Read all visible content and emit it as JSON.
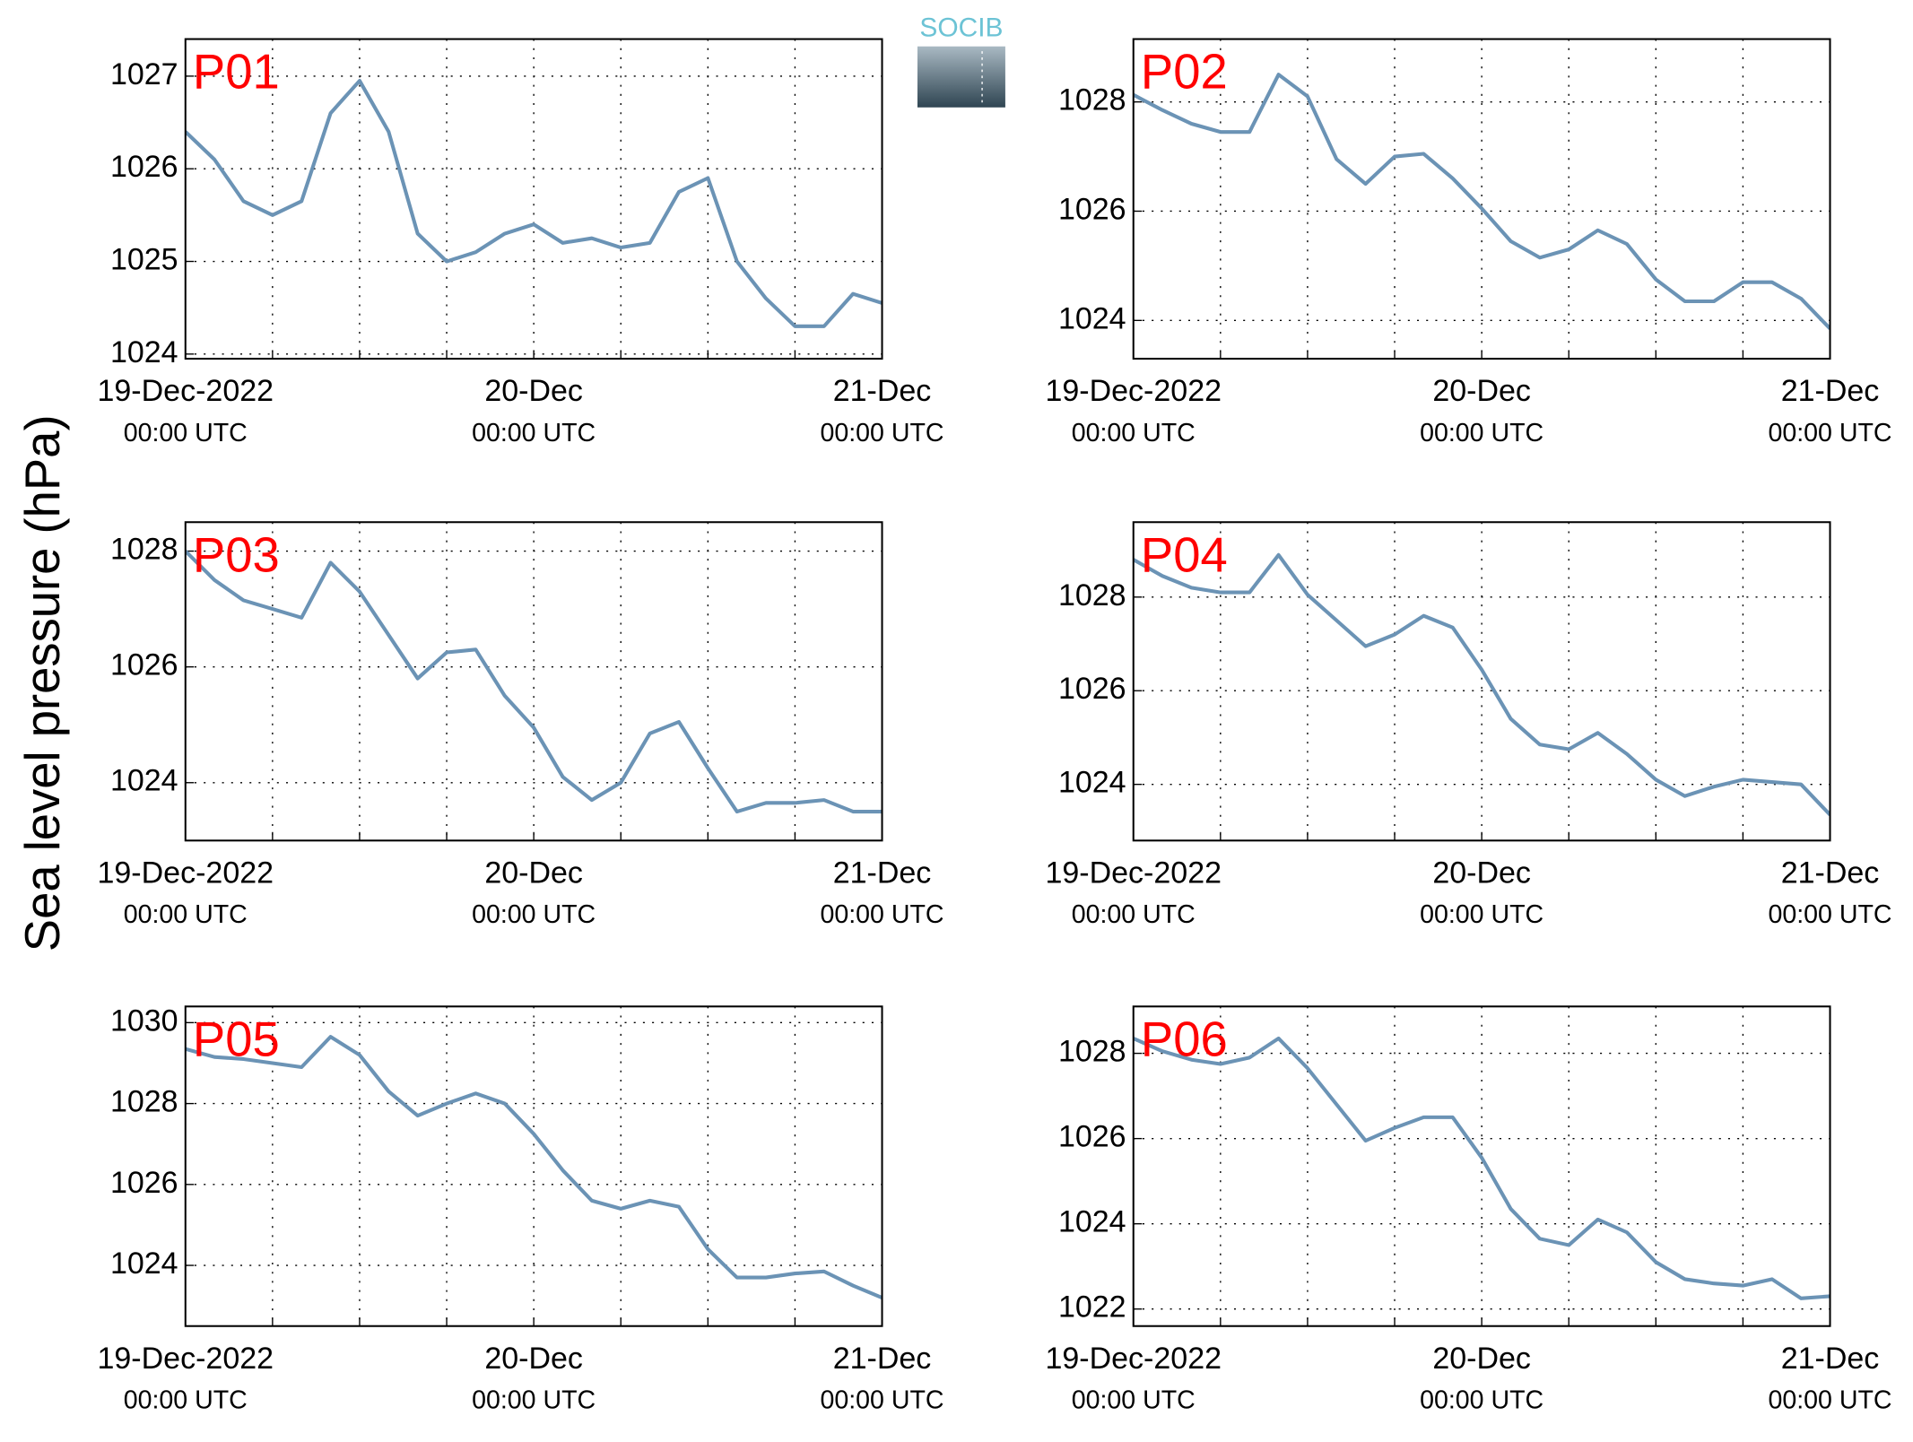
{
  "ylabel": "Sea level pressure (hPa)",
  "logo": "SOCIB",
  "chart_data": [
    {
      "type": "line",
      "title": "P01",
      "x": [
        "19-Dec-2022 00:00",
        "19-Dec-2022 02:00",
        "19-Dec-2022 04:00",
        "19-Dec-2022 06:00",
        "19-Dec-2022 08:00",
        "19-Dec-2022 10:00",
        "19-Dec-2022 12:00",
        "19-Dec-2022 14:00",
        "19-Dec-2022 16:00",
        "19-Dec-2022 18:00",
        "19-Dec-2022 20:00",
        "19-Dec-2022 22:00",
        "20-Dec-2022 00:00",
        "20-Dec-2022 02:00",
        "20-Dec-2022 04:00",
        "20-Dec-2022 06:00",
        "20-Dec-2022 08:00",
        "20-Dec-2022 10:00",
        "20-Dec-2022 12:00",
        "20-Dec-2022 14:00",
        "20-Dec-2022 16:00",
        "20-Dec-2022 18:00",
        "20-Dec-2022 20:00",
        "20-Dec-2022 22:00",
        "21-Dec-2022 00:00"
      ],
      "series": [
        {
          "color": "#6b93b5",
          "values": [
            1026.4,
            1026.1,
            1025.65,
            1025.5,
            1025.65,
            1026.6,
            1026.95,
            1026.4,
            1025.3,
            1025.0,
            1025.1,
            1025.3,
            1025.4,
            1025.2,
            1025.25,
            1025.15,
            1025.2,
            1025.75,
            1025.9,
            1025.0,
            1024.6,
            1024.3,
            1024.3,
            1024.65,
            1024.55
          ]
        }
      ],
      "xlim": [
        "19-Dec-2022 00:00",
        "21-Dec-2022 00:00"
      ],
      "xticks": [
        {
          "value": "19-Dec-2022 00:00",
          "label": "19-Dec-2022"
        },
        {
          "value": "20-Dec-2022 00:00",
          "label": "20-Dec"
        },
        {
          "value": "21-Dec-2022 00:00",
          "label": "21-Dec"
        }
      ],
      "xtick_sublabels": [
        "00:00 UTC",
        "00:00 UTC",
        "00:00 UTC"
      ],
      "xgrid": [
        "19-Dec-2022 06:00",
        "19-Dec-2022 12:00",
        "19-Dec-2022 18:00",
        "20-Dec-2022 06:00",
        "20-Dec-2022 12:00",
        "20-Dec-2022 18:00"
      ],
      "ylim": [
        1023.95,
        1027.4
      ],
      "yticks": [
        1024,
        1025,
        1026,
        1027
      ],
      "grid": true,
      "title_color": "#ff0000"
    },
    {
      "type": "line",
      "title": "P02",
      "x": [
        "19-Dec-2022 00:00",
        "19-Dec-2022 02:00",
        "19-Dec-2022 04:00",
        "19-Dec-2022 06:00",
        "19-Dec-2022 08:00",
        "19-Dec-2022 10:00",
        "19-Dec-2022 12:00",
        "19-Dec-2022 14:00",
        "19-Dec-2022 16:00",
        "19-Dec-2022 18:00",
        "19-Dec-2022 20:00",
        "19-Dec-2022 22:00",
        "20-Dec-2022 00:00",
        "20-Dec-2022 02:00",
        "20-Dec-2022 04:00",
        "20-Dec-2022 06:00",
        "20-Dec-2022 08:00",
        "20-Dec-2022 10:00",
        "20-Dec-2022 12:00",
        "20-Dec-2022 14:00",
        "20-Dec-2022 16:00",
        "20-Dec-2022 18:00",
        "20-Dec-2022 20:00",
        "20-Dec-2022 22:00",
        "21-Dec-2022 00:00"
      ],
      "series": [
        {
          "color": "#6b93b5",
          "values": [
            1028.13,
            1027.85,
            1027.6,
            1027.45,
            1027.45,
            1028.5,
            1028.1,
            1026.95,
            1026.5,
            1027.0,
            1027.05,
            1026.6,
            1026.05,
            1025.45,
            1025.15,
            1025.3,
            1025.65,
            1025.4,
            1024.75,
            1024.35,
            1024.35,
            1024.7,
            1024.7,
            1024.4,
            1023.85
          ]
        }
      ],
      "xlim": [
        "19-Dec-2022 00:00",
        "21-Dec-2022 00:00"
      ],
      "xticks": [
        {
          "value": "19-Dec-2022 00:00",
          "label": "19-Dec-2022"
        },
        {
          "value": "20-Dec-2022 00:00",
          "label": "20-Dec"
        },
        {
          "value": "21-Dec-2022 00:00",
          "label": "21-Dec"
        }
      ],
      "xtick_sublabels": [
        "00:00 UTC",
        "00:00 UTC",
        "00:00 UTC"
      ],
      "xgrid": [
        "19-Dec-2022 06:00",
        "19-Dec-2022 12:00",
        "19-Dec-2022 18:00",
        "20-Dec-2022 06:00",
        "20-Dec-2022 12:00",
        "20-Dec-2022 18:00"
      ],
      "ylim": [
        1023.3,
        1029.15
      ],
      "yticks": [
        1024,
        1026,
        1028
      ],
      "grid": true,
      "title_color": "#ff0000"
    },
    {
      "type": "line",
      "title": "P03",
      "x": [
        "19-Dec-2022 00:00",
        "19-Dec-2022 02:00",
        "19-Dec-2022 04:00",
        "19-Dec-2022 06:00",
        "19-Dec-2022 08:00",
        "19-Dec-2022 10:00",
        "19-Dec-2022 12:00",
        "19-Dec-2022 14:00",
        "19-Dec-2022 16:00",
        "19-Dec-2022 18:00",
        "19-Dec-2022 20:00",
        "19-Dec-2022 22:00",
        "20-Dec-2022 00:00",
        "20-Dec-2022 02:00",
        "20-Dec-2022 04:00",
        "20-Dec-2022 06:00",
        "20-Dec-2022 08:00",
        "20-Dec-2022 10:00",
        "20-Dec-2022 12:00",
        "20-Dec-2022 14:00",
        "20-Dec-2022 16:00",
        "20-Dec-2022 18:00",
        "20-Dec-2022 20:00",
        "20-Dec-2022 22:00",
        "21-Dec-2022 00:00"
      ],
      "series": [
        {
          "color": "#6b93b5",
          "values": [
            1028.0,
            1027.5,
            1027.15,
            1027.0,
            1026.85,
            1027.8,
            1027.3,
            1026.55,
            1025.8,
            1026.25,
            1026.3,
            1025.5,
            1024.95,
            1024.1,
            1023.7,
            1024.0,
            1024.85,
            1025.05,
            1024.25,
            1023.5,
            1023.65,
            1023.65,
            1023.7,
            1023.5,
            1023.5
          ]
        }
      ],
      "xlim": [
        "19-Dec-2022 00:00",
        "21-Dec-2022 00:00"
      ],
      "xticks": [
        {
          "value": "19-Dec-2022 00:00",
          "label": "19-Dec-2022"
        },
        {
          "value": "20-Dec-2022 00:00",
          "label": "20-Dec"
        },
        {
          "value": "21-Dec-2022 00:00",
          "label": "21-Dec"
        }
      ],
      "xtick_sublabels": [
        "00:00 UTC",
        "00:00 UTC",
        "00:00 UTC"
      ],
      "xgrid": [
        "19-Dec-2022 06:00",
        "19-Dec-2022 12:00",
        "19-Dec-2022 18:00",
        "20-Dec-2022 06:00",
        "20-Dec-2022 12:00",
        "20-Dec-2022 18:00"
      ],
      "ylim": [
        1023.0,
        1028.5
      ],
      "yticks": [
        1024,
        1026,
        1028
      ],
      "grid": true,
      "title_color": "#ff0000"
    },
    {
      "type": "line",
      "title": "P04",
      "x": [
        "19-Dec-2022 00:00",
        "19-Dec-2022 02:00",
        "19-Dec-2022 04:00",
        "19-Dec-2022 06:00",
        "19-Dec-2022 08:00",
        "19-Dec-2022 10:00",
        "19-Dec-2022 12:00",
        "19-Dec-2022 14:00",
        "19-Dec-2022 16:00",
        "19-Dec-2022 18:00",
        "19-Dec-2022 20:00",
        "19-Dec-2022 22:00",
        "20-Dec-2022 00:00",
        "20-Dec-2022 02:00",
        "20-Dec-2022 04:00",
        "20-Dec-2022 06:00",
        "20-Dec-2022 08:00",
        "20-Dec-2022 10:00",
        "20-Dec-2022 12:00",
        "20-Dec-2022 14:00",
        "20-Dec-2022 16:00",
        "20-Dec-2022 18:00",
        "20-Dec-2022 20:00",
        "20-Dec-2022 22:00",
        "21-Dec-2022 00:00"
      ],
      "series": [
        {
          "color": "#6b93b5",
          "values": [
            1028.8,
            1028.45,
            1028.2,
            1028.1,
            1028.1,
            1028.9,
            1028.05,
            1027.5,
            1026.95,
            1027.2,
            1027.6,
            1027.35,
            1026.45,
            1025.4,
            1024.85,
            1024.75,
            1025.1,
            1024.65,
            1024.1,
            1023.75,
            1023.95,
            1024.1,
            1024.05,
            1024.0,
            1023.35
          ]
        }
      ],
      "xlim": [
        "19-Dec-2022 00:00",
        "21-Dec-2022 00:00"
      ],
      "xticks": [
        {
          "value": "19-Dec-2022 00:00",
          "label": "19-Dec-2022"
        },
        {
          "value": "20-Dec-2022 00:00",
          "label": "20-Dec"
        },
        {
          "value": "21-Dec-2022 00:00",
          "label": "21-Dec"
        }
      ],
      "xtick_sublabels": [
        "00:00 UTC",
        "00:00 UTC",
        "00:00 UTC"
      ],
      "xgrid": [
        "19-Dec-2022 06:00",
        "19-Dec-2022 12:00",
        "19-Dec-2022 18:00",
        "20-Dec-2022 06:00",
        "20-Dec-2022 12:00",
        "20-Dec-2022 18:00"
      ],
      "ylim": [
        1022.8,
        1029.6
      ],
      "yticks": [
        1024,
        1026,
        1028
      ],
      "grid": true,
      "title_color": "#ff0000"
    },
    {
      "type": "line",
      "title": "P05",
      "x": [
        "19-Dec-2022 00:00",
        "19-Dec-2022 02:00",
        "19-Dec-2022 04:00",
        "19-Dec-2022 06:00",
        "19-Dec-2022 08:00",
        "19-Dec-2022 10:00",
        "19-Dec-2022 12:00",
        "19-Dec-2022 14:00",
        "19-Dec-2022 16:00",
        "19-Dec-2022 18:00",
        "19-Dec-2022 20:00",
        "19-Dec-2022 22:00",
        "20-Dec-2022 00:00",
        "20-Dec-2022 02:00",
        "20-Dec-2022 04:00",
        "20-Dec-2022 06:00",
        "20-Dec-2022 08:00",
        "20-Dec-2022 10:00",
        "20-Dec-2022 12:00",
        "20-Dec-2022 14:00",
        "20-Dec-2022 16:00",
        "20-Dec-2022 18:00",
        "20-Dec-2022 20:00",
        "20-Dec-2022 22:00",
        "21-Dec-2022 00:00"
      ],
      "series": [
        {
          "color": "#6b93b5",
          "values": [
            1029.35,
            1029.15,
            1029.1,
            1029.0,
            1028.9,
            1029.65,
            1029.2,
            1028.3,
            1027.7,
            1028.0,
            1028.25,
            1028.0,
            1027.25,
            1026.35,
            1025.6,
            1025.4,
            1025.6,
            1025.45,
            1024.4,
            1023.7,
            1023.7,
            1023.8,
            1023.85,
            1023.5,
            1023.2
          ]
        }
      ],
      "xlim": [
        "19-Dec-2022 00:00",
        "21-Dec-2022 00:00"
      ],
      "xticks": [
        {
          "value": "19-Dec-2022 00:00",
          "label": "19-Dec-2022"
        },
        {
          "value": "20-Dec-2022 00:00",
          "label": "20-Dec"
        },
        {
          "value": "21-Dec-2022 00:00",
          "label": "21-Dec"
        }
      ],
      "xtick_sublabels": [
        "00:00 UTC",
        "00:00 UTC",
        "00:00 UTC"
      ],
      "xgrid": [
        "19-Dec-2022 06:00",
        "19-Dec-2022 12:00",
        "19-Dec-2022 18:00",
        "20-Dec-2022 06:00",
        "20-Dec-2022 12:00",
        "20-Dec-2022 18:00"
      ],
      "ylim": [
        1022.5,
        1030.4
      ],
      "yticks": [
        1024,
        1026,
        1028,
        1030
      ],
      "grid": true,
      "title_color": "#ff0000"
    },
    {
      "type": "line",
      "title": "P06",
      "x": [
        "19-Dec-2022 00:00",
        "19-Dec-2022 02:00",
        "19-Dec-2022 04:00",
        "19-Dec-2022 06:00",
        "19-Dec-2022 08:00",
        "19-Dec-2022 10:00",
        "19-Dec-2022 12:00",
        "19-Dec-2022 14:00",
        "19-Dec-2022 16:00",
        "19-Dec-2022 18:00",
        "19-Dec-2022 20:00",
        "19-Dec-2022 22:00",
        "20-Dec-2022 00:00",
        "20-Dec-2022 02:00",
        "20-Dec-2022 04:00",
        "20-Dec-2022 06:00",
        "20-Dec-2022 08:00",
        "20-Dec-2022 10:00",
        "20-Dec-2022 12:00",
        "20-Dec-2022 14:00",
        "20-Dec-2022 16:00",
        "20-Dec-2022 18:00",
        "20-Dec-2022 20:00",
        "20-Dec-2022 22:00",
        "21-Dec-2022 00:00"
      ],
      "series": [
        {
          "color": "#6b93b5",
          "values": [
            1028.35,
            1028.05,
            1027.85,
            1027.75,
            1027.9,
            1028.35,
            1027.65,
            1026.8,
            1025.95,
            1026.25,
            1026.5,
            1026.5,
            1025.55,
            1024.35,
            1023.65,
            1023.5,
            1024.1,
            1023.8,
            1023.1,
            1022.7,
            1022.6,
            1022.55,
            1022.7,
            1022.25,
            1022.3
          ]
        }
      ],
      "xlim": [
        "19-Dec-2022 00:00",
        "21-Dec-2022 00:00"
      ],
      "xticks": [
        {
          "value": "19-Dec-2022 00:00",
          "label": "19-Dec-2022"
        },
        {
          "value": "20-Dec-2022 00:00",
          "label": "20-Dec"
        },
        {
          "value": "21-Dec-2022 00:00",
          "label": "21-Dec"
        }
      ],
      "xtick_sublabels": [
        "00:00 UTC",
        "00:00 UTC",
        "00:00 UTC"
      ],
      "xgrid": [
        "19-Dec-2022 06:00",
        "19-Dec-2022 12:00",
        "19-Dec-2022 18:00",
        "20-Dec-2022 06:00",
        "20-Dec-2022 12:00",
        "20-Dec-2022 18:00"
      ],
      "ylim": [
        1021.6,
        1029.1
      ],
      "yticks": [
        1022,
        1024,
        1026,
        1028
      ],
      "grid": true,
      "title_color": "#ff0000"
    }
  ]
}
